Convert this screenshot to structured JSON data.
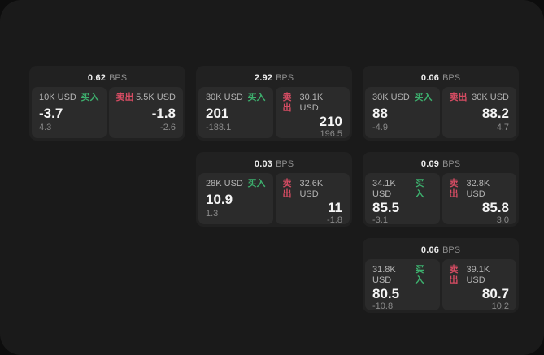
{
  "colors": {
    "buy": "#3db06e",
    "sell": "#d64c63"
  },
  "labels": {
    "bps": "BPS",
    "buy": "买入",
    "sell": "卖出"
  },
  "cards": [
    {
      "row": 1,
      "col": 1,
      "bps": "0.62",
      "buy": {
        "amount": "10K USD",
        "value": "-3.7",
        "delta": "4.3"
      },
      "sell": {
        "amount": "5.5K USD",
        "value": "-1.8",
        "delta": "-2.6"
      }
    },
    {
      "row": 1,
      "col": 2,
      "bps": "2.92",
      "buy": {
        "amount": "30K USD",
        "value": "201",
        "delta": "-188.1"
      },
      "sell": {
        "amount": "30.1K USD",
        "value": "210",
        "delta": "196.5"
      }
    },
    {
      "row": 1,
      "col": 3,
      "bps": "0.06",
      "buy": {
        "amount": "30K USD",
        "value": "88",
        "delta": "-4.9"
      },
      "sell": {
        "amount": "30K USD",
        "value": "88.2",
        "delta": "4.7"
      }
    },
    {
      "row": 2,
      "col": 2,
      "bps": "0.03",
      "buy": {
        "amount": "28K USD",
        "value": "10.9",
        "delta": "1.3"
      },
      "sell": {
        "amount": "32.6K USD",
        "value": "11",
        "delta": "-1.8"
      }
    },
    {
      "row": 2,
      "col": 3,
      "bps": "0.09",
      "buy": {
        "amount": "34.1K USD",
        "value": "85.5",
        "delta": "-3.1"
      },
      "sell": {
        "amount": "32.8K USD",
        "value": "85.8",
        "delta": "3.0"
      }
    },
    {
      "row": 3,
      "col": 3,
      "bps": "0.06",
      "buy": {
        "amount": "31.8K USD",
        "value": "80.5",
        "delta": "-10.8"
      },
      "sell": {
        "amount": "39.1K USD",
        "value": "80.7",
        "delta": "10.2"
      }
    }
  ]
}
